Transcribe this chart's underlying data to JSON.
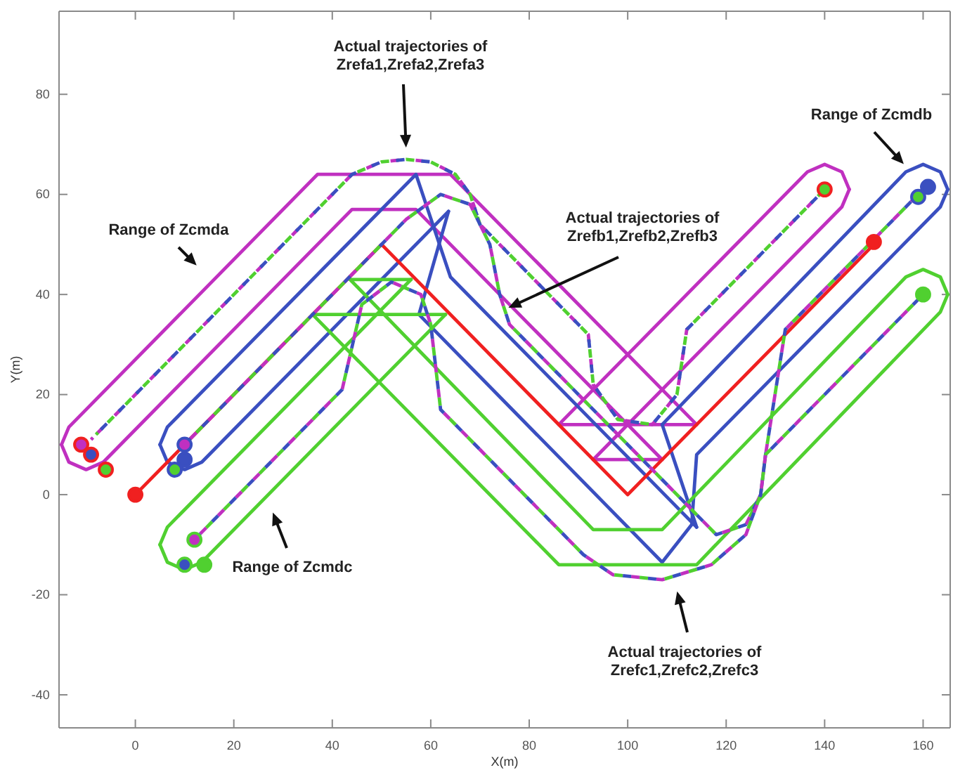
{
  "chart_data": {
    "type": "line",
    "xlabel": "X(m)",
    "ylabel": "Y(m)",
    "xlim": [
      -15.5,
      165.5
    ],
    "ylim": [
      -46.6,
      96.6
    ],
    "xticks": [
      0,
      20,
      40,
      60,
      80,
      100,
      120,
      140,
      160
    ],
    "yticks": [
      -40,
      -20,
      0,
      20,
      40,
      60,
      80
    ],
    "grid": false,
    "series": [
      {
        "color": "#c030c0",
        "line_style": "solid",
        "x": [
          -15,
          -13.5,
          37,
          64,
          114
        ],
        "values": [
          10,
          13.5,
          64,
          64,
          14
        ]
      },
      {
        "color": "#c030c0",
        "line_style": "solid",
        "x": [
          86,
          136.5,
          140,
          143.5,
          145
        ],
        "values": [
          14,
          64.5,
          66,
          64.5,
          61
        ]
      },
      {
        "color": "#c030c0",
        "line_style": "solid",
        "x": [
          -15,
          -13.5,
          -10,
          -6.5,
          44,
          57,
          107
        ],
        "values": [
          10,
          6.5,
          5,
          6.5,
          57,
          57,
          7
        ]
      },
      {
        "color": "#c030c0",
        "line_style": "solid",
        "x": [
          93,
          143.5,
          145
        ],
        "values": [
          7,
          57.5,
          61
        ]
      },
      {
        "color": "#c030c0",
        "line_style": "solid",
        "x": [
          86,
          114
        ],
        "values": [
          14,
          14
        ]
      },
      {
        "color": "#c030c0",
        "line_style": "solid",
        "x": [
          93,
          107
        ],
        "values": [
          7,
          7
        ]
      },
      {
        "color": "#3a4fc0",
        "line_style": "solid",
        "x": [
          5,
          6.5,
          57,
          64,
          114
        ],
        "values": [
          10,
          13.5,
          64,
          43.5,
          -6.5
        ]
      },
      {
        "color": "#3a4fc0",
        "line_style": "solid",
        "x": [
          107,
          156.5,
          160,
          163.5,
          165
        ],
        "values": [
          14,
          64.5,
          66,
          64.5,
          61
        ]
      },
      {
        "color": "#3a4fc0",
        "line_style": "solid",
        "x": [
          107,
          114
        ],
        "values": [
          14,
          -6.5
        ]
      },
      {
        "color": "#3a4fc0",
        "line_style": "solid",
        "x": [
          5,
          6.5,
          10,
          13.5,
          63.6
        ],
        "values": [
          10,
          6.5,
          5,
          6.5,
          56.6
        ]
      },
      {
        "color": "#3a4fc0",
        "line_style": "solid",
        "x": [
          57.6,
          63.6
        ],
        "values": [
          36,
          56.6
        ]
      },
      {
        "color": "#3a4fc0",
        "line_style": "solid",
        "x": [
          57.6,
          107,
          113,
          114,
          163.5,
          165
        ],
        "values": [
          36,
          -13.5,
          -6,
          8,
          57.5,
          61
        ]
      },
      {
        "color": "#50d030",
        "line_style": "solid",
        "x": [
          5,
          6.5,
          56
        ],
        "values": [
          -10,
          -6.5,
          43
        ]
      },
      {
        "color": "#50d030",
        "line_style": "solid",
        "x": [
          43.6,
          56
        ],
        "values": [
          43,
          43
        ]
      },
      {
        "color": "#50d030",
        "line_style": "solid",
        "x": [
          43.6,
          93,
          107,
          156.5,
          160,
          163.5,
          165
        ],
        "values": [
          43,
          -7,
          -7,
          43.5,
          45,
          43.5,
          40
        ]
      },
      {
        "color": "#50d030",
        "line_style": "solid",
        "x": [
          5,
          6.5,
          10,
          13.5,
          63
        ],
        "values": [
          -10,
          -13.5,
          -15,
          -13.5,
          36
        ]
      },
      {
        "color": "#50d030",
        "line_style": "solid",
        "x": [
          36,
          63
        ],
        "values": [
          36,
          36
        ]
      },
      {
        "color": "#50d030",
        "line_style": "solid",
        "x": [
          36,
          86,
          114,
          163.5,
          165
        ],
        "values": [
          36,
          -14,
          -14,
          36.5,
          40
        ]
      },
      {
        "color": "#f02020",
        "line_style": "solid",
        "x": [
          0,
          50,
          100,
          150
        ],
        "values": [
          0,
          50,
          0,
          50
        ]
      },
      {
        "color": "#c030c0",
        "line_style": "dashed",
        "x": [
          -9,
          44,
          50,
          55,
          60,
          65,
          68,
          70,
          92,
          93,
          98,
          105,
          110,
          112,
          140
        ],
        "values": [
          11,
          64,
          66.5,
          67,
          66.5,
          64,
          60,
          54,
          32,
          22,
          15,
          14,
          20,
          33,
          61
        ]
      },
      {
        "color": "#50d030",
        "line_style": "dashed",
        "x": [
          -8,
          44,
          50,
          55,
          60,
          65,
          68,
          70,
          92,
          93,
          98,
          105,
          110,
          112,
          140
        ],
        "values": [
          12,
          64,
          66.5,
          67,
          66.5,
          64,
          60,
          54,
          32,
          22,
          15,
          14,
          20,
          33,
          61
        ]
      },
      {
        "color": "#3a4fc0",
        "line_style": "dashed",
        "x": [
          -7,
          44,
          50,
          55,
          60,
          65,
          68,
          70,
          92,
          93,
          98,
          105,
          110,
          112,
          140
        ],
        "values": [
          13,
          64,
          66.5,
          67,
          66.5,
          64,
          60,
          54,
          32,
          22,
          15,
          14,
          20,
          33,
          61
        ]
      },
      {
        "color": "#c030c0",
        "line_style": "dashed",
        "x": [
          10,
          55,
          62,
          68,
          72,
          74,
          76,
          118,
          124,
          127,
          128,
          132,
          160
        ],
        "values": [
          10,
          55,
          60,
          58,
          50,
          40,
          34,
          -8,
          -6,
          0,
          8,
          33,
          61
        ]
      },
      {
        "color": "#50d030",
        "line_style": "dashed",
        "x": [
          10,
          55,
          62,
          68,
          72,
          74,
          76,
          118,
          124,
          127,
          128,
          132,
          160
        ],
        "values": [
          10,
          55,
          60,
          58,
          50,
          40,
          34,
          -8,
          -6,
          0,
          8,
          33,
          61
        ]
      },
      {
        "color": "#3a4fc0",
        "line_style": "dashed",
        "x": [
          10,
          55,
          62,
          68,
          72,
          74,
          76,
          118,
          124,
          127,
          128,
          132,
          160
        ],
        "values": [
          10,
          55,
          60,
          58,
          50,
          40,
          34,
          -8,
          -6,
          0,
          8,
          33,
          61
        ]
      },
      {
        "color": "#c030c0",
        "line_style": "dashed",
        "x": [
          12,
          42,
          46,
          52,
          58,
          60,
          62,
          91,
          97,
          107,
          117,
          124,
          127,
          128,
          160
        ],
        "values": [
          -9,
          21,
          38,
          42.5,
          40,
          34,
          17,
          -12,
          -16,
          -17,
          -14,
          -8,
          0,
          8,
          40
        ]
      },
      {
        "color": "#50d030",
        "line_style": "dashed",
        "x": [
          12,
          42,
          46,
          52,
          58,
          60,
          62,
          91,
          97,
          107,
          117,
          124,
          127,
          128,
          160
        ],
        "values": [
          -9,
          21,
          38,
          42.5,
          40,
          34,
          17,
          -12,
          -16,
          -17,
          -14,
          -8,
          0,
          8,
          40
        ]
      },
      {
        "color": "#3a4fc0",
        "line_style": "dashed",
        "x": [
          12,
          42,
          46,
          52,
          58,
          60,
          62,
          91,
          97,
          107,
          117,
          124,
          127,
          128,
          160
        ],
        "values": [
          -9,
          21,
          38,
          42.5,
          40,
          34,
          17,
          -12,
          -16,
          -17,
          -14,
          -8,
          0,
          8,
          40
        ]
      },
      {
        "type": "scatter",
        "marker": "circle",
        "color": "#f02020",
        "x": [
          -11,
          -9,
          -6,
          0,
          140,
          150
        ],
        "values": [
          10,
          8,
          5,
          0,
          61,
          50.5
        ],
        "colors": [
          "#c030c0",
          "#3a4fc0",
          "#50d030",
          "#f02020",
          "#50d030",
          "#f02020"
        ]
      },
      {
        "type": "scatter",
        "marker": "circle",
        "color": "#3a4fc0",
        "x": [
          10,
          10,
          8,
          161,
          159
        ],
        "values": [
          10,
          7,
          5,
          61.5,
          59.5
        ],
        "colors": [
          "#c030c0",
          "#3a4fc0",
          "#50d030",
          "#3a4fc0",
          "#50d030"
        ]
      },
      {
        "type": "scatter",
        "marker": "circle",
        "color": "#50d030",
        "x": [
          12,
          10,
          14,
          160
        ],
        "values": [
          -9,
          -14,
          -14,
          40
        ],
        "colors": [
          "#c030c0",
          "#3a4fc0",
          "#50d030",
          "#50d030"
        ]
      }
    ],
    "annotations": [
      "Actual trajectories of Zrefa1,Zrefa2,Zrefa3",
      "Range of Zcmda",
      {
        "text": "Actual trajectories of Zrefb1,Zrefb2,Zrefb3",
        "x": 75,
        "y": 37
      },
      "Range of Zcmdb",
      "Range of Zcmdc",
      "Actual trajectories of Zrefc1,Zrefc2,Zrefc3"
    ]
  }
}
